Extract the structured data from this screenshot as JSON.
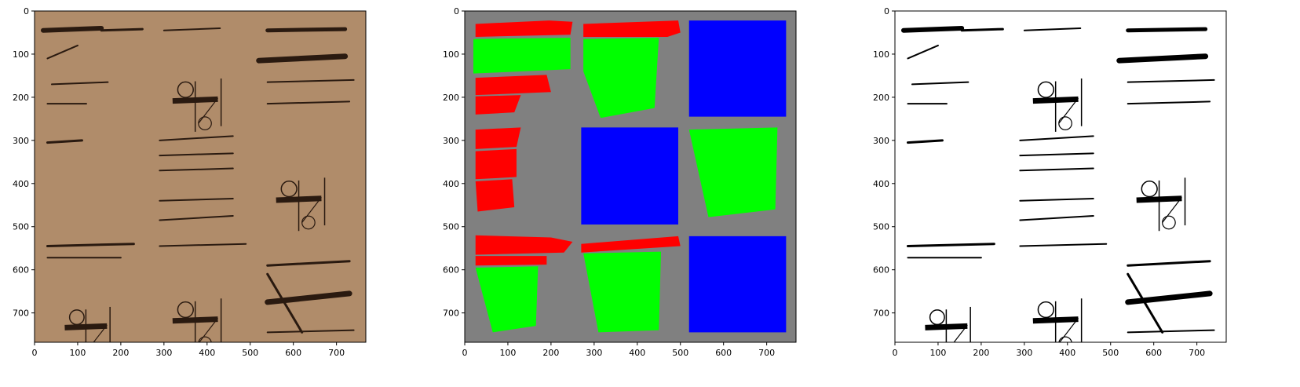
{
  "figure": {
    "panels": [
      {
        "name": "handwritten-manuscript",
        "xticks": [
          "0",
          "100",
          "200",
          "300",
          "400",
          "500",
          "600",
          "700"
        ],
        "yticks": [
          "0",
          "100",
          "200",
          "300",
          "400",
          "500",
          "600",
          "700"
        ],
        "xlim": [
          0,
          768
        ],
        "ylim": [
          768,
          0
        ],
        "background": "#b08c6a",
        "strokes": [
          {
            "x1": 20,
            "y1": 45,
            "x2": 155,
            "y2": 40,
            "w": 6
          },
          {
            "x1": 155,
            "y1": 45,
            "x2": 250,
            "y2": 42,
            "w": 3
          },
          {
            "x1": 300,
            "y1": 45,
            "x2": 430,
            "y2": 40,
            "w": 2
          },
          {
            "x1": 540,
            "y1": 45,
            "x2": 720,
            "y2": 42,
            "w": 5
          },
          {
            "x1": 520,
            "y1": 115,
            "x2": 720,
            "y2": 105,
            "w": 7
          },
          {
            "x1": 30,
            "y1": 110,
            "x2": 100,
            "y2": 80,
            "w": 2
          },
          {
            "x1": 40,
            "y1": 170,
            "x2": 170,
            "y2": 165,
            "w": 2
          },
          {
            "x1": 30,
            "y1": 215,
            "x2": 120,
            "y2": 215,
            "w": 2
          },
          {
            "x1": 540,
            "y1": 165,
            "x2": 740,
            "y2": 160,
            "w": 2
          },
          {
            "x1": 540,
            "y1": 215,
            "x2": 730,
            "y2": 210,
            "w": 2
          },
          {
            "x1": 30,
            "y1": 305,
            "x2": 110,
            "y2": 300,
            "w": 3
          },
          {
            "x1": 290,
            "y1": 300,
            "x2": 460,
            "y2": 290,
            "w": 2
          },
          {
            "x1": 290,
            "y1": 335,
            "x2": 460,
            "y2": 330,
            "w": 2
          },
          {
            "x1": 290,
            "y1": 370,
            "x2": 460,
            "y2": 365,
            "w": 2
          },
          {
            "x1": 290,
            "y1": 440,
            "x2": 460,
            "y2": 435,
            "w": 2
          },
          {
            "x1": 290,
            "y1": 485,
            "x2": 460,
            "y2": 475,
            "w": 2
          },
          {
            "x1": 30,
            "y1": 545,
            "x2": 230,
            "y2": 540,
            "w": 3
          },
          {
            "x1": 290,
            "y1": 545,
            "x2": 490,
            "y2": 540,
            "w": 2
          },
          {
            "x1": 540,
            "y1": 590,
            "x2": 730,
            "y2": 580,
            "w": 3
          },
          {
            "x1": 540,
            "y1": 675,
            "x2": 730,
            "y2": 655,
            "w": 7
          },
          {
            "x1": 540,
            "y1": 745,
            "x2": 740,
            "y2": 740,
            "w": 2
          },
          {
            "x1": 540,
            "y1": 610,
            "x2": 620,
            "y2": 745,
            "w": 3
          },
          {
            "x1": 30,
            "y1": 572,
            "x2": 200,
            "y2": 572,
            "w": 2
          }
        ],
        "glyphs": [
          {
            "x": 320,
            "y": 150,
            "w": 150,
            "h": 130
          },
          {
            "x": 560,
            "y": 380,
            "w": 150,
            "h": 130
          },
          {
            "x": 70,
            "y": 680,
            "w": 140,
            "h": 120
          },
          {
            "x": 320,
            "y": 660,
            "w": 150,
            "h": 130
          }
        ]
      },
      {
        "name": "segmentation-mask",
        "xticks": [
          "0",
          "100",
          "200",
          "300",
          "400",
          "500",
          "600",
          "700"
        ],
        "yticks": [
          "0",
          "100",
          "200",
          "300",
          "400",
          "500",
          "600",
          "700"
        ],
        "xlim": [
          0,
          768
        ],
        "ylim": [
          768,
          0
        ],
        "background": "#808080",
        "colors": {
          "red": "#ff0000",
          "green": "#00ff00",
          "blue": "#0000ff"
        },
        "regions": [
          {
            "color": "red",
            "points": [
              [
                25,
                30
              ],
              [
                195,
                22
              ],
              [
                250,
                25
              ],
              [
                245,
                55
              ],
              [
                25,
                60
              ]
            ]
          },
          {
            "color": "green",
            "points": [
              [
                20,
                65
              ],
              [
                245,
                62
              ],
              [
                245,
                135
              ],
              [
                20,
                145
              ]
            ]
          },
          {
            "color": "red",
            "points": [
              [
                25,
                155
              ],
              [
                190,
                148
              ],
              [
                200,
                188
              ],
              [
                25,
                195
              ]
            ]
          },
          {
            "color": "red",
            "points": [
              [
                25,
                198
              ],
              [
                130,
                195
              ],
              [
                115,
                235
              ],
              [
                25,
                240
              ]
            ]
          },
          {
            "color": "red",
            "points": [
              [
                275,
                30
              ],
              [
                495,
                22
              ],
              [
                500,
                50
              ],
              [
                470,
                60
              ],
              [
                275,
                60
              ]
            ]
          },
          {
            "color": "green",
            "points": [
              [
                275,
                65
              ],
              [
                450,
                62
              ],
              [
                440,
                225
              ],
              [
                315,
                248
              ],
              [
                275,
                140
              ]
            ]
          },
          {
            "color": "blue",
            "points": [
              [
                520,
                22
              ],
              [
                745,
                22
              ],
              [
                745,
                245
              ],
              [
                520,
                245
              ]
            ]
          },
          {
            "color": "red",
            "points": [
              [
                25,
                275
              ],
              [
                130,
                270
              ],
              [
                120,
                315
              ],
              [
                25,
                320
              ]
            ]
          },
          {
            "color": "red",
            "points": [
              [
                25,
                325
              ],
              [
                120,
                320
              ],
              [
                120,
                385
              ],
              [
                25,
                390
              ]
            ]
          },
          {
            "color": "red",
            "points": [
              [
                25,
                395
              ],
              [
                110,
                390
              ],
              [
                115,
                455
              ],
              [
                30,
                465
              ]
            ]
          },
          {
            "color": "blue",
            "points": [
              [
                270,
                270
              ],
              [
                495,
                270
              ],
              [
                495,
                495
              ],
              [
                270,
                495
              ]
            ]
          },
          {
            "color": "green",
            "points": [
              [
                520,
                275
              ],
              [
                725,
                270
              ],
              [
                720,
                460
              ],
              [
                565,
                478
              ]
            ]
          },
          {
            "color": "red",
            "points": [
              [
                25,
                520
              ],
              [
                200,
                525
              ],
              [
                250,
                535
              ],
              [
                230,
                560
              ],
              [
                25,
                565
              ]
            ]
          },
          {
            "color": "red",
            "points": [
              [
                25,
                568
              ],
              [
                190,
                568
              ],
              [
                190,
                588
              ],
              [
                25,
                590
              ]
            ]
          },
          {
            "color": "green",
            "points": [
              [
                25,
                595
              ],
              [
                170,
                592
              ],
              [
                165,
                730
              ],
              [
                65,
                745
              ]
            ]
          },
          {
            "color": "red",
            "points": [
              [
                270,
                540
              ],
              [
                495,
                522
              ],
              [
                500,
                545
              ],
              [
                270,
                560
              ]
            ]
          },
          {
            "color": "green",
            "points": [
              [
                275,
                562
              ],
              [
                455,
                558
              ],
              [
                450,
                740
              ],
              [
                310,
                745
              ]
            ]
          },
          {
            "color": "blue",
            "points": [
              [
                520,
                522
              ],
              [
                745,
                522
              ],
              [
                745,
                745
              ],
              [
                520,
                745
              ]
            ]
          }
        ]
      },
      {
        "name": "binarized-manuscript",
        "xticks": [
          "0",
          "100",
          "200",
          "300",
          "400",
          "500",
          "600",
          "700"
        ],
        "yticks": [
          "0",
          "100",
          "200",
          "300",
          "400",
          "500",
          "600",
          "700"
        ],
        "xlim": [
          0,
          768
        ],
        "ylim": [
          768,
          0
        ],
        "background": "#ffffff"
      }
    ]
  }
}
